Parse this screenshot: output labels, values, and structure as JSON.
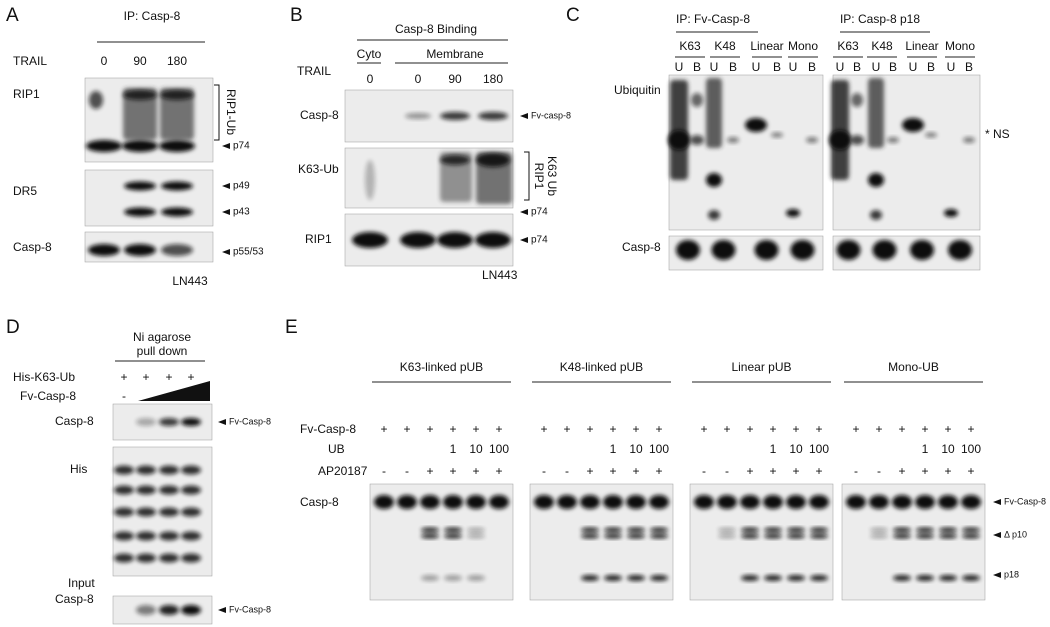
{
  "panel_a": {
    "letter": "A",
    "title": "IP: Casp-8",
    "treatment": "TRAIL",
    "lanes": [
      "0",
      "90",
      "180"
    ],
    "blots": [
      "RIP1",
      "DR5",
      "Casp-8"
    ],
    "bracket_label": "RIP1-Ub",
    "markers": [
      "p74",
      "p49",
      "p43",
      "p55/53"
    ],
    "cell_line": "LN443"
  },
  "panel_b": {
    "letter": "B",
    "title": "Casp-8 Binding",
    "fractions": [
      "Cyto",
      "Membrane"
    ],
    "treatment": "TRAIL",
    "lanes": [
      "0",
      "0",
      "90",
      "180"
    ],
    "blots": [
      "Casp-8",
      "K63-Ub",
      "RIP1"
    ],
    "bracket_label": [
      "RIP1",
      "K63 Ub"
    ],
    "markers": [
      "Fv-casp-8",
      "p74",
      "p74"
    ],
    "cell_line": "LN443"
  },
  "panel_c": {
    "letter": "C",
    "ips": [
      {
        "title": "IP: Fv-Casp-8",
        "chains": [
          "K63",
          "K48",
          "Linear",
          "Mono"
        ],
        "lanes": [
          "U",
          "B",
          "U",
          "B",
          "U",
          "B",
          "U",
          "B"
        ]
      },
      {
        "title": "IP: Casp-8 p18",
        "chains": [
          "K63",
          "K48",
          "Linear",
          "Mono"
        ],
        "lanes": [
          "U",
          "B",
          "U",
          "B",
          "U",
          "B",
          "U",
          "B"
        ]
      }
    ],
    "blots": [
      "Ubiquitin",
      "Casp-8"
    ],
    "marker": "* NS"
  },
  "panel_d": {
    "letter": "D",
    "title": [
      "Ni agarose",
      "pull down"
    ],
    "rows": [
      {
        "label": "His-K63-Ub",
        "lanes": [
          "+",
          "+",
          "+",
          "+"
        ]
      },
      {
        "label": "Fv-Casp-8",
        "lanes": [
          "-"
        ]
      }
    ],
    "blots": [
      "Casp-8",
      "His",
      [
        "Input",
        "Casp-8"
      ]
    ],
    "markers": [
      "Fv-Casp-8",
      "Fv-Casp-8"
    ]
  },
  "panel_e": {
    "letter": "E",
    "row_labels": [
      "Fv-Casp-8",
      "UB",
      "AP20187"
    ],
    "groups": [
      {
        "title": "K63-linked pUB",
        "fv": [
          "+",
          "+",
          "+",
          "+",
          "+",
          "+"
        ],
        "ub": [
          "1",
          "10",
          "100"
        ],
        "ap": [
          "-",
          "-",
          "+",
          "+",
          "+",
          "+"
        ]
      },
      {
        "title": "K48-linked pUB",
        "fv": [
          "+",
          "+",
          "+",
          "+",
          "+",
          "+"
        ],
        "ub": [
          "1",
          "10",
          "100"
        ],
        "ap": [
          "-",
          "-",
          "+",
          "+",
          "+",
          "+"
        ]
      },
      {
        "title": "Linear pUB",
        "fv": [
          "+",
          "+",
          "+",
          "+",
          "+",
          "+"
        ],
        "ub": [
          "1",
          "10",
          "100"
        ],
        "ap": [
          "-",
          "-",
          "+",
          "+",
          "+",
          "+"
        ]
      },
      {
        "title": "Mono-UB",
        "fv": [
          "+",
          "+",
          "+",
          "+",
          "+",
          "+"
        ],
        "ub": [
          "1",
          "10",
          "100"
        ],
        "ap": [
          "-",
          "-",
          "+",
          "+",
          "+",
          "+"
        ]
      }
    ],
    "blot_label": "Casp-8",
    "markers": [
      "Fv-Casp-8",
      "Δ p10",
      "p18"
    ]
  }
}
